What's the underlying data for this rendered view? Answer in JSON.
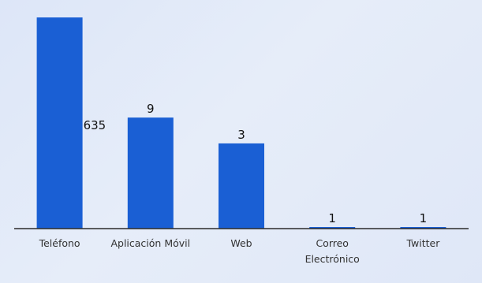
{
  "chart_data": {
    "type": "bar",
    "categories": [
      "Teléfono",
      "Aplicación Móvil",
      "Web",
      "Correo Electrónico",
      "Twitter"
    ],
    "category_lines": [
      [
        "Teléfono"
      ],
      [
        "Aplicación Móvil"
      ],
      [
        "Web"
      ],
      [
        "Correo",
        "Electrónico"
      ],
      [
        "Twitter"
      ]
    ],
    "values": [
      635,
      9,
      3,
      1,
      1
    ],
    "data_labels": [
      "635",
      "9",
      "3",
      "1",
      "1"
    ],
    "title": "",
    "xlabel": "",
    "ylabel": "",
    "grid": false,
    "bar_color": "#1a5fd4",
    "axis_color": "#2b2b2b"
  }
}
